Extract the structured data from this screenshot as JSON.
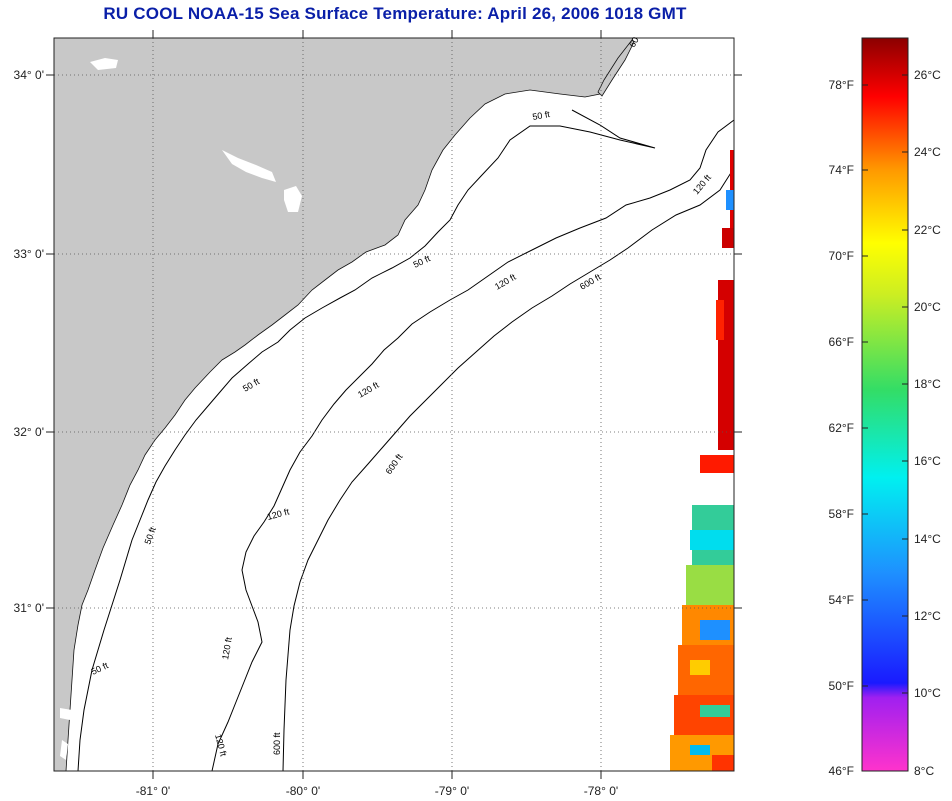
{
  "title": "RU COOL  NOAA-15  Sea Surface Temperature:  April 26, 2006 1018 GMT",
  "map": {
    "lat_labels": [
      "34° 0'",
      "33° 0'",
      "32° 0'",
      "31° 0'"
    ],
    "lon_labels": [
      "-81° 0'",
      "-80° 0'",
      "-79° 0'",
      "-78° 0'"
    ],
    "contour_labels": [
      "60",
      "50 ft",
      "50 ft",
      "50 ft",
      "50 ft",
      "50 ft",
      "120 ft",
      "120 ft",
      "120 ft",
      "120 ft",
      "120 ft",
      "600 ft",
      "600 ft",
      "600 ft",
      "120 ft"
    ]
  },
  "colorbar": {
    "fahrenheit_labels": [
      "78°F",
      "74°F",
      "70°F",
      "66°F",
      "62°F",
      "58°F",
      "54°F",
      "50°F",
      "46°F"
    ],
    "celsius_labels": [
      "26°C",
      "24°C",
      "22°C",
      "20°C",
      "18°C",
      "16°C",
      "14°C",
      "12°C",
      "10°C",
      "8°C"
    ]
  },
  "colors": {
    "title": "#0a1fa8",
    "land": "#c8c8c8",
    "ocean": "#ffffff"
  }
}
